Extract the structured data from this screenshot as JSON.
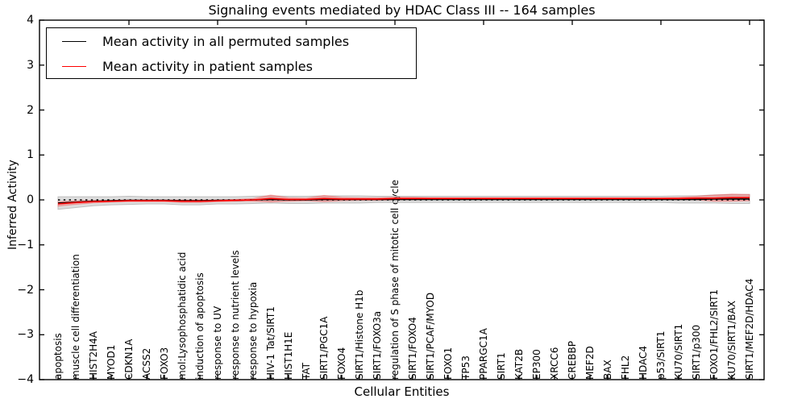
{
  "chart": {
    "title": "Signaling events mediated by HDAC Class III -- 164 samples",
    "xlabel": "Cellular Entities",
    "ylabel": "Inferred Activity"
  },
  "legend": {
    "items": [
      {
        "label": "Mean activity in all permuted samples",
        "color": "#000000"
      },
      {
        "label": "Mean activity in patient samples",
        "color": "#ff0000"
      }
    ]
  },
  "chart_data": {
    "type": "line",
    "title": "Signaling events mediated by HDAC Class III -- 164 samples",
    "xlabel": "Cellular Entities",
    "ylabel": "Inferred Activity",
    "ylim": [
      -4,
      4
    ],
    "grid": false,
    "legend_position": "upper left",
    "y_tick_labels": [
      "4",
      "3",
      "2",
      "1",
      "0",
      "−1",
      "−2",
      "−3",
      "−4"
    ],
    "y_tick_values": [
      4,
      3,
      2,
      1,
      0,
      -1,
      -2,
      -3,
      -4
    ],
    "categories": [
      "apoptosis",
      "muscle cell differentiation",
      "HIST2H4A",
      "MYOD1",
      "CDKN1A",
      "ACSS2",
      "FOXO3",
      "mol:Lysophosphatidic acid",
      "induction of apoptosis",
      "response to UV",
      "response to nutrient levels",
      "response to hypoxia",
      "HIV-1 Tat/SIRT1",
      "HIST1H1E",
      "TAT",
      "SIRT1/PGC1A",
      "FOXO4",
      "SIRT1/Histone H1b",
      "SIRT1/FOXO3a",
      "regulation of S phase of mitotic cell cycle",
      "SIRT1/FOXO4",
      "SIRT1/PCAF/MYOD",
      "FOXO1",
      "TP53",
      "PPARGC1A",
      "SIRT1",
      "KAT2B",
      "EP300",
      "XRCC6",
      "CREBBP",
      "MEF2D",
      "BAX",
      "FHL2",
      "HDAC4",
      "p53/SIRT1",
      "KU70/SIRT1",
      "SIRT1/p300",
      "FOXO1/FHL2/SIRT1",
      "KU70/SIRT1/BAX",
      "SIRT1/MEF2D/HDAC4"
    ],
    "series": [
      {
        "name": "Mean activity in all permuted samples",
        "color": "#000000",
        "values": [
          -0.07,
          -0.05,
          -0.03,
          -0.02,
          -0.01,
          -0.01,
          -0.01,
          -0.02,
          -0.02,
          -0.01,
          -0.01,
          0.0,
          0.01,
          0.0,
          0.0,
          0.01,
          0.01,
          0.01,
          0.01,
          0.01,
          0.01,
          0.01,
          0.01,
          0.01,
          0.01,
          0.01,
          0.01,
          0.01,
          0.01,
          0.01,
          0.01,
          0.01,
          0.01,
          0.01,
          0.01,
          0.01,
          0.01,
          0.02,
          0.02,
          0.02
        ]
      },
      {
        "name": "Mean activity in patient samples",
        "color": "#ff0000",
        "values": [
          -0.09,
          -0.06,
          -0.04,
          -0.03,
          -0.02,
          -0.02,
          -0.02,
          -0.03,
          -0.03,
          -0.02,
          -0.01,
          0.0,
          0.03,
          0.01,
          0.01,
          0.03,
          0.02,
          0.02,
          0.02,
          0.03,
          0.03,
          0.03,
          0.03,
          0.03,
          0.03,
          0.03,
          0.03,
          0.03,
          0.03,
          0.03,
          0.03,
          0.03,
          0.03,
          0.03,
          0.03,
          0.03,
          0.04,
          0.04,
          0.05,
          0.05
        ]
      }
    ],
    "bands": [
      {
        "name": "permuted-samples-envelope",
        "around_series": 0,
        "fill": "rgba(170,170,170,0.40)",
        "edge": "#bfbfbf",
        "half_widths": [
          0.14,
          0.12,
          0.1,
          0.09,
          0.09,
          0.08,
          0.08,
          0.09,
          0.09,
          0.08,
          0.08,
          0.08,
          0.08,
          0.08,
          0.08,
          0.08,
          0.08,
          0.08,
          0.07,
          0.07,
          0.07,
          0.07,
          0.07,
          0.07,
          0.07,
          0.07,
          0.07,
          0.07,
          0.07,
          0.07,
          0.07,
          0.07,
          0.07,
          0.07,
          0.07,
          0.08,
          0.08,
          0.09,
          0.1,
          0.1
        ]
      },
      {
        "name": "patient-samples-envelope",
        "around_series": 1,
        "fill": "rgba(255,40,40,0.30)",
        "edge": "rgba(255,80,80,0.35)",
        "half_widths": [
          0.05,
          0.04,
          0.03,
          0.02,
          0.02,
          0.02,
          0.02,
          0.03,
          0.03,
          0.02,
          0.02,
          0.03,
          0.08,
          0.04,
          0.03,
          0.07,
          0.04,
          0.03,
          0.03,
          0.03,
          0.03,
          0.02,
          0.02,
          0.02,
          0.02,
          0.02,
          0.02,
          0.02,
          0.02,
          0.02,
          0.02,
          0.02,
          0.02,
          0.02,
          0.02,
          0.03,
          0.04,
          0.07,
          0.08,
          0.07
        ]
      }
    ],
    "zero_line": {
      "value": 0,
      "style": "dotted",
      "color": "#000000"
    },
    "frame_color": "#000000",
    "top_tick_every": 5
  }
}
